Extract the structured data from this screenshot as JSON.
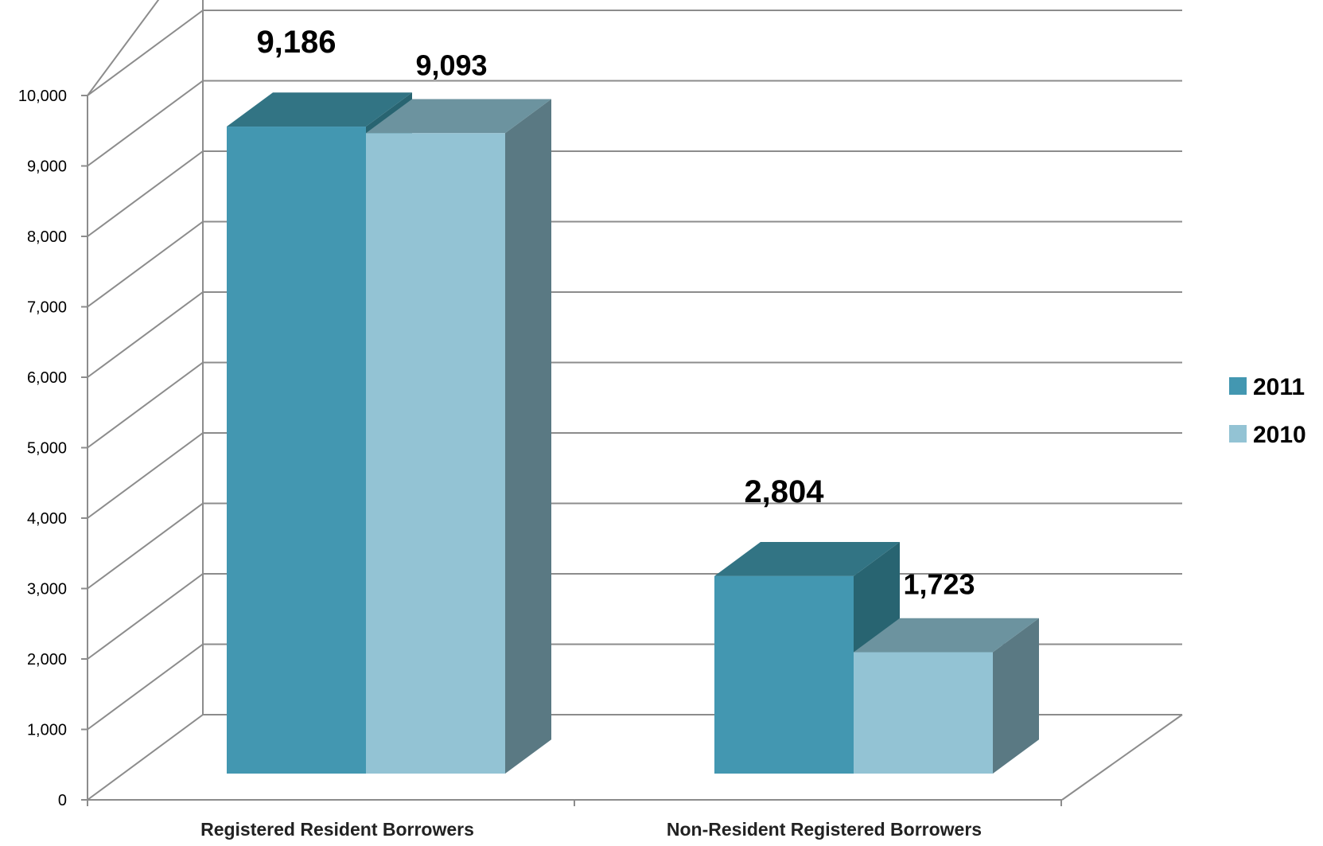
{
  "chart_data": {
    "type": "bar",
    "style": "3d-clustered-column",
    "categories": [
      "Registered Resident Borrowers",
      "Non-Resident Registered Borrowers"
    ],
    "series": [
      {
        "name": "2011",
        "values": [
          9186,
          2804
        ],
        "labels": [
          "9,186",
          "2,804"
        ],
        "color": "#4397b1"
      },
      {
        "name": "2010",
        "values": [
          9093,
          1723
        ],
        "labels": [
          "9,093",
          "1,723"
        ],
        "color": "#93c3d4"
      }
    ],
    "ylim": [
      0,
      10000
    ],
    "yticks": [
      0,
      1000,
      2000,
      3000,
      4000,
      5000,
      6000,
      7000,
      8000,
      9000,
      10000
    ],
    "ytick_labels": [
      "0",
      "1,000",
      "2,000",
      "3,000",
      "4,000",
      "5,000",
      "6,000",
      "7,000",
      "8,000",
      "9,000",
      "10,000"
    ],
    "title": "",
    "xlabel": "",
    "ylabel": "",
    "grid": true,
    "legend_position": "right"
  }
}
